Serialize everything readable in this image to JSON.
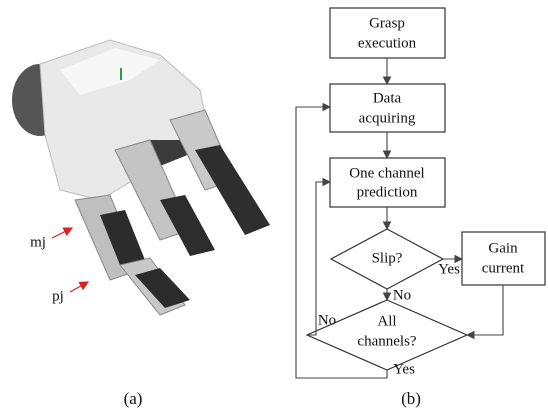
{
  "panel_a": {
    "label": "(a)",
    "annotations": [
      "mj",
      "pj"
    ]
  },
  "panel_b": {
    "label": "(b)",
    "nodes": [
      {
        "lines": [
          "Grasp",
          "execution"
        ]
      },
      {
        "lines": [
          "Data",
          "acquiring"
        ]
      },
      {
        "lines": [
          "One channel",
          "prediction"
        ]
      },
      {
        "lines": [
          "Slip?"
        ]
      },
      {
        "lines": [
          "Gain",
          "current"
        ]
      },
      {
        "lines": [
          "All",
          "channels?"
        ]
      }
    ],
    "edge_labels": [
      "Yes",
      "No",
      "No",
      "Yes"
    ]
  }
}
